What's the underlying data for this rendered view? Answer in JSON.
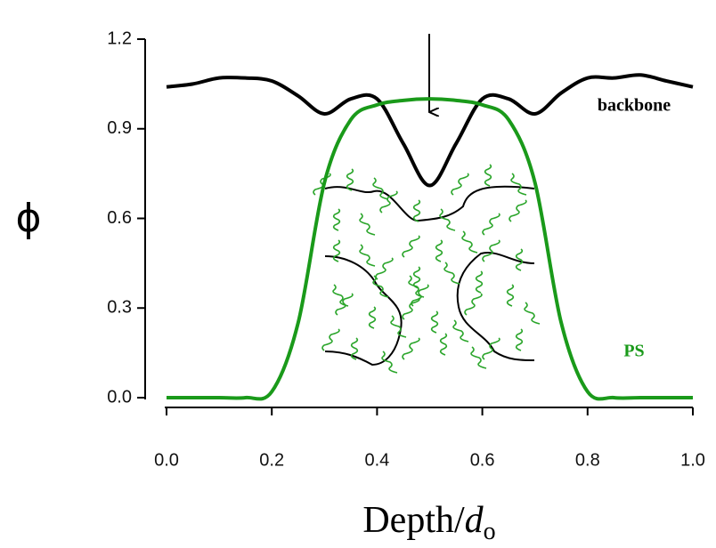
{
  "chart_data": {
    "type": "line",
    "ylabel": "ϕ",
    "xlabel": [
      "Depth/",
      "d",
      "o"
    ],
    "x": [
      0,
      0.05,
      0.1,
      0.15,
      0.2,
      0.25,
      0.3,
      0.35,
      0.4,
      0.45,
      0.5,
      0.55,
      0.6,
      0.65,
      0.7,
      0.75,
      0.8,
      0.85,
      0.9,
      0.95,
      1.0
    ],
    "series": [
      {
        "name": "backbone",
        "color": "#000000",
        "values": [
          1.04,
          1.05,
          1.07,
          1.07,
          1.06,
          1.01,
          0.95,
          1.0,
          1.0,
          0.85,
          0.71,
          0.85,
          1.0,
          1.0,
          0.95,
          1.02,
          1.07,
          1.07,
          1.08,
          1.06,
          1.04
        ]
      },
      {
        "name": "PS",
        "color": "#1a9a1a",
        "values": [
          0,
          0,
          0,
          0,
          0.02,
          0.25,
          0.72,
          0.93,
          0.98,
          0.995,
          1.0,
          0.995,
          0.98,
          0.93,
          0.72,
          0.25,
          0.02,
          0,
          0,
          0,
          0
        ]
      }
    ],
    "xlim": [
      0,
      1.0
    ],
    "ylim": [
      0,
      1.2
    ],
    "xticks": [
      {
        "value": 0,
        "label": "0.0"
      },
      0.2,
      0.4,
      0.6,
      0.8,
      {
        "value": 1.0,
        "label": "1.0"
      }
    ],
    "yticks": [
      {
        "value": 0,
        "label": "0.0"
      },
      0.3,
      0.6,
      0.9,
      1.2
    ]
  }
}
